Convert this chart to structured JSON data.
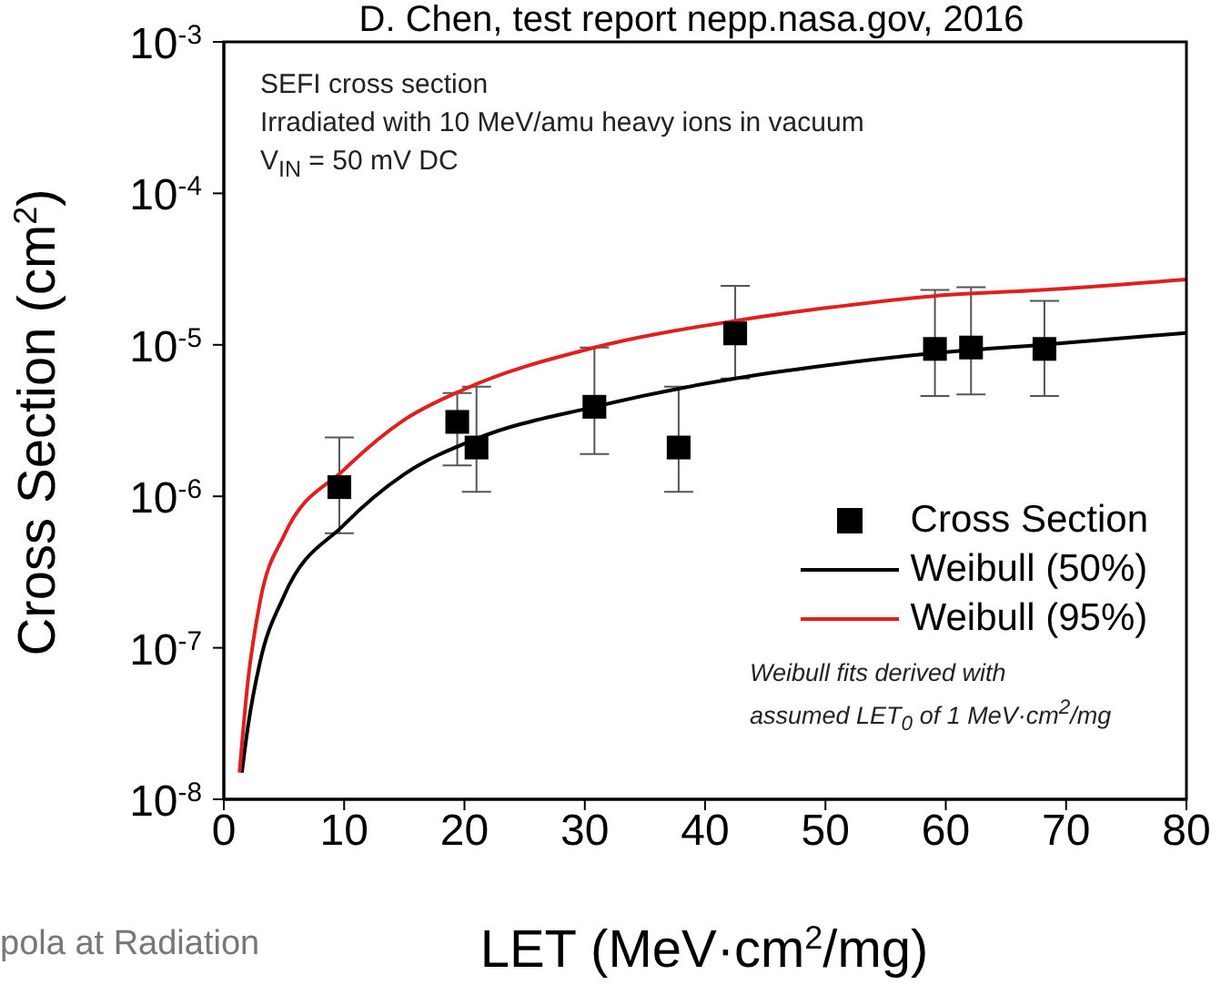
{
  "chart_data": {
    "type": "scatter",
    "title": "D. Chen, test report nepp.nasa.gov, 2016",
    "xlabel": "LET (MeV·cm$^{2}$/mg)",
    "ylabel": "Cross Section (cm$^{2}$)",
    "xlim": [
      0,
      80
    ],
    "xticks": [
      0,
      10,
      20,
      30,
      40,
      50,
      60,
      70,
      80
    ],
    "ylim": [
      1e-08,
      0.001
    ],
    "log": "y",
    "yticks": [
      {
        "value": 1e-08,
        "label": "10$^{-8}$"
      },
      {
        "value": 1e-07,
        "label": "10$^{-7}$"
      },
      {
        "value": 1e-06,
        "label": "10$^{-6}$"
      },
      {
        "value": 1e-05,
        "label": "10$^{-5}$"
      },
      {
        "value": 0.0001,
        "label": "10$^{-4}$"
      },
      {
        "value": 0.001,
        "label": "10$^{-3}$"
      }
    ],
    "legend": "bottom right",
    "series": [
      {
        "name": "Cross Section",
        "marker": "square",
        "color": "#000000",
        "x": [
          9.6,
          19.4,
          21.0,
          30.8,
          37.8,
          42.5,
          59.1,
          62.1,
          68.2
        ],
        "values": [
          1.15e-06,
          3.1e-06,
          2.1e-06,
          3.9e-06,
          2.1e-06,
          1.19e-05,
          9.4e-06,
          9.6e-06,
          9.4e-06
        ],
        "errors": [
          [
            5.7e-07,
            2.45e-06
          ],
          [
            1.6e-06,
            4.8e-06
          ],
          [
            1.07e-06,
            5.3e-06
          ],
          [
            1.9e-06,
            9.6e-06
          ],
          [
            1.07e-06,
            5.3e-06
          ],
          [
            6e-06,
            2.45e-05
          ],
          [
            4.6e-06,
            2.3e-05
          ],
          [
            4.7e-06,
            2.4e-05
          ],
          [
            4.6e-06,
            1.95e-05
          ]
        ]
      },
      {
        "name": "Weibull (50%)",
        "type": "line",
        "color": "#000000",
        "x": [
          1.5,
          2,
          3,
          5,
          10,
          15,
          21,
          30.8,
          42.5,
          50,
          59,
          68,
          80
        ],
        "values": [
          1.5e-08,
          3e-08,
          8e-08,
          2.2e-07,
          6.5e-07,
          1.4e-06,
          2.4e-06,
          3.9e-06,
          6e-06,
          7.3e-06,
          8.8e-06,
          1e-05,
          1.2e-05
        ]
      },
      {
        "name": "Weibull (95%)",
        "type": "line",
        "color": "#e0201e",
        "x": [
          1.3,
          2,
          3,
          5,
          10,
          15,
          20,
          30.8,
          42.5,
          50,
          59,
          68,
          80
        ],
        "values": [
          1.5e-08,
          6e-08,
          2e-07,
          5.5e-07,
          1.5e-06,
          3.2e-06,
          5.1e-06,
          9.6e-06,
          1.44e-05,
          1.75e-05,
          2.1e-05,
          2.3e-05,
          2.7e-05
        ]
      }
    ],
    "annotations": [
      "SEFI cross section",
      "Irradiated with 10 MeV/amu heavy ions in vacuum",
      "V$_{IN}$ = 50 mV DC",
      "Weibull fits derived with",
      "assumed LET$_{0}$ of 1 MeV·cm$^{2}$/mg",
      "pola at Radiation"
    ]
  }
}
